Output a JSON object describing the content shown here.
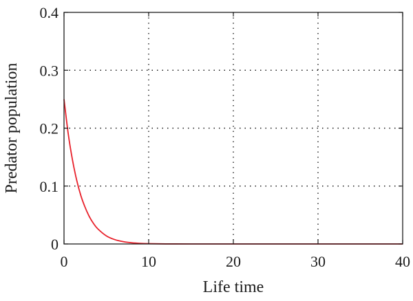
{
  "chart_data": {
    "type": "line",
    "title": "",
    "xlabel": "Life time",
    "ylabel": "Predator population",
    "xlim": [
      0,
      40
    ],
    "ylim": [
      0,
      0.4
    ],
    "xticks": [
      0,
      10,
      20,
      30,
      40
    ],
    "yticks": [
      0,
      0.1,
      0.2,
      0.3,
      0.4
    ],
    "xtick_labels": [
      "0",
      "10",
      "20",
      "30",
      "40"
    ],
    "ytick_labels": [
      "0",
      "0.1",
      "0.2",
      "0.3",
      "0.4"
    ],
    "grid": true,
    "grid_style": "dotted",
    "series": [
      {
        "color": "#e8202a",
        "x": [
          0,
          0.5,
          1,
          1.5,
          2,
          2.5,
          3,
          3.5,
          4,
          5,
          6,
          7,
          8,
          9,
          10,
          12,
          15,
          20,
          25,
          30,
          35,
          40
        ],
        "y": [
          0.25,
          0.19,
          0.145,
          0.11,
          0.083,
          0.063,
          0.047,
          0.035,
          0.026,
          0.014,
          0.0075,
          0.004,
          0.002,
          0.001,
          0.0005,
          0.0001,
          0.0,
          0.0,
          0.0,
          0.0,
          0.0,
          0.0
        ]
      }
    ]
  }
}
